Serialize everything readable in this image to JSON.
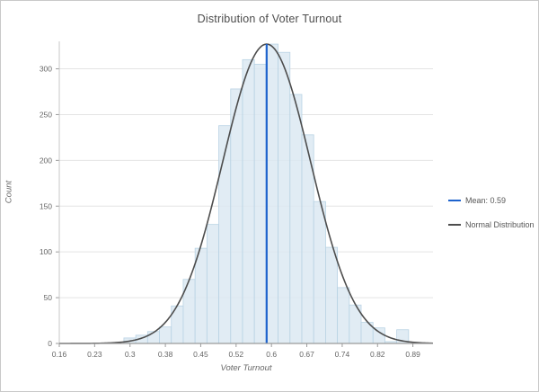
{
  "panel": {
    "background": "#ffffff",
    "border_color": "#c9c9c9"
  },
  "chart_data": {
    "type": "bar",
    "subtype": "histogram-with-normal-fit",
    "title": "Distribution of Voter Turnout",
    "xlabel": "Voter Turnout",
    "ylabel": "Count",
    "xlim": [
      0.16,
      0.935
    ],
    "ylim": [
      0,
      330
    ],
    "grid": true,
    "x_tick_labels": [
      "0.16",
      "0.23",
      "0.3",
      "0.38",
      "0.45",
      "0.52",
      "0.6",
      "0.67",
      "0.74",
      "0.82",
      "0.89"
    ],
    "x_tick_values": [
      0.16,
      0.2333,
      0.3067,
      0.38,
      0.4533,
      0.5267,
      0.6,
      0.6733,
      0.7467,
      0.82,
      0.8933
    ],
    "y_tick_labels": [
      "0",
      "50",
      "100",
      "150",
      "200",
      "250",
      "300"
    ],
    "y_tick_values": [
      0,
      50,
      100,
      150,
      200,
      250,
      300
    ],
    "histogram": {
      "bin_start": 0.294,
      "bin_width": 0.0246,
      "counts": [
        6,
        9,
        13,
        18,
        41,
        70,
        104,
        130,
        238,
        278,
        310,
        305,
        327,
        318,
        272,
        228,
        155,
        105,
        61,
        42,
        23,
        17,
        2,
        15
      ],
      "fill_color": "#dae8f2",
      "stroke_color": "#b9d3e4"
    },
    "normal_curve": {
      "mu": 0.59,
      "sigma": 0.0912,
      "peak_count": 327,
      "color": "#4d4d4d"
    },
    "mean_line": {
      "x": 0.59,
      "value_label": "0.59",
      "color": "#1e63cd"
    },
    "legend": {
      "position": "right",
      "items": [
        {
          "label": "Mean: 0.59",
          "color": "#1e63cd"
        },
        {
          "label": "Normal Distribution",
          "color": "#4d4d4d"
        }
      ]
    },
    "style": {
      "gridline_color": "#e4e4e4",
      "axis_line_color": "#9b9b9b",
      "tick_text_color": "#676767",
      "title_color": "#4c4c4c"
    }
  }
}
